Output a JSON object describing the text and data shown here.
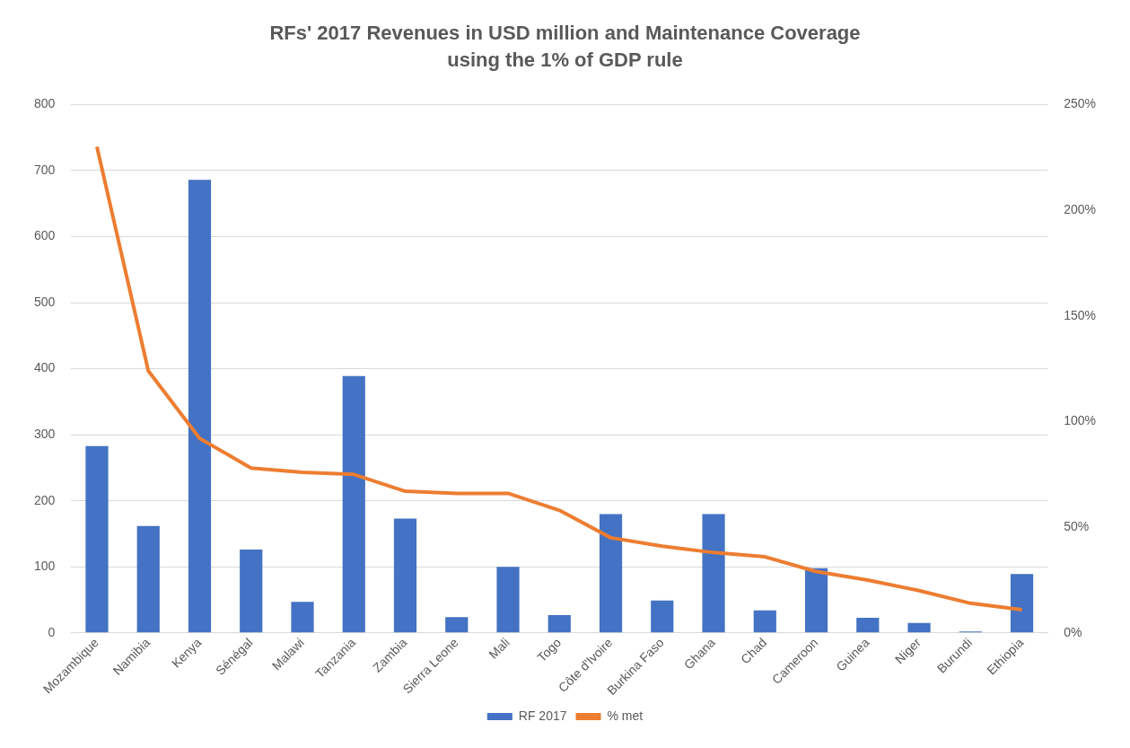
{
  "chart_data": {
    "type": "bar",
    "title": "RFs' 2017 Revenues in USD million and Maintenance Coverage using the 1% of GDP rule",
    "categories": [
      "Mozambique",
      "Namibia",
      "Kenya",
      "Sénégal",
      "Malawi",
      "Tanzania",
      "Zambia",
      "Sierra Leone",
      "Mali",
      "Togo",
      "Côte d'Ivoire",
      "Burkina Faso",
      "Ghana",
      "Chad",
      "Cameroon",
      "Guinea",
      "Niger",
      "Burundi",
      "Ethiopia"
    ],
    "series": [
      {
        "name": "RF 2017",
        "color": "#4472c4",
        "values": [
          283,
          162,
          686,
          126,
          47,
          389,
          173,
          24,
          100,
          27,
          180,
          49,
          180,
          34,
          98,
          23,
          15,
          2,
          89
        ]
      },
      {
        "name": "% met",
        "type": "line",
        "axis": "y2",
        "color": "#ed7d31",
        "values": [
          230,
          124,
          92,
          78,
          76,
          75,
          67,
          66,
          66,
          58,
          45,
          41,
          38,
          36,
          29,
          25,
          20,
          14,
          11
        ]
      }
    ],
    "ylim": [
      0,
      800
    ],
    "yticks": [
      0,
      100,
      200,
      300,
      400,
      500,
      600,
      700,
      800
    ],
    "y2lim": [
      0,
      250
    ],
    "y2ticks": [
      {
        "value": 0,
        "label": "0%"
      },
      {
        "value": 50,
        "label": "50%"
      },
      {
        "value": 100,
        "label": "100%"
      },
      {
        "value": 150,
        "label": "150%"
      },
      {
        "value": 200,
        "label": "200%"
      },
      {
        "value": 250,
        "label": "250%"
      }
    ],
    "grid": "y",
    "legend": "bottom",
    "marker": "none"
  }
}
